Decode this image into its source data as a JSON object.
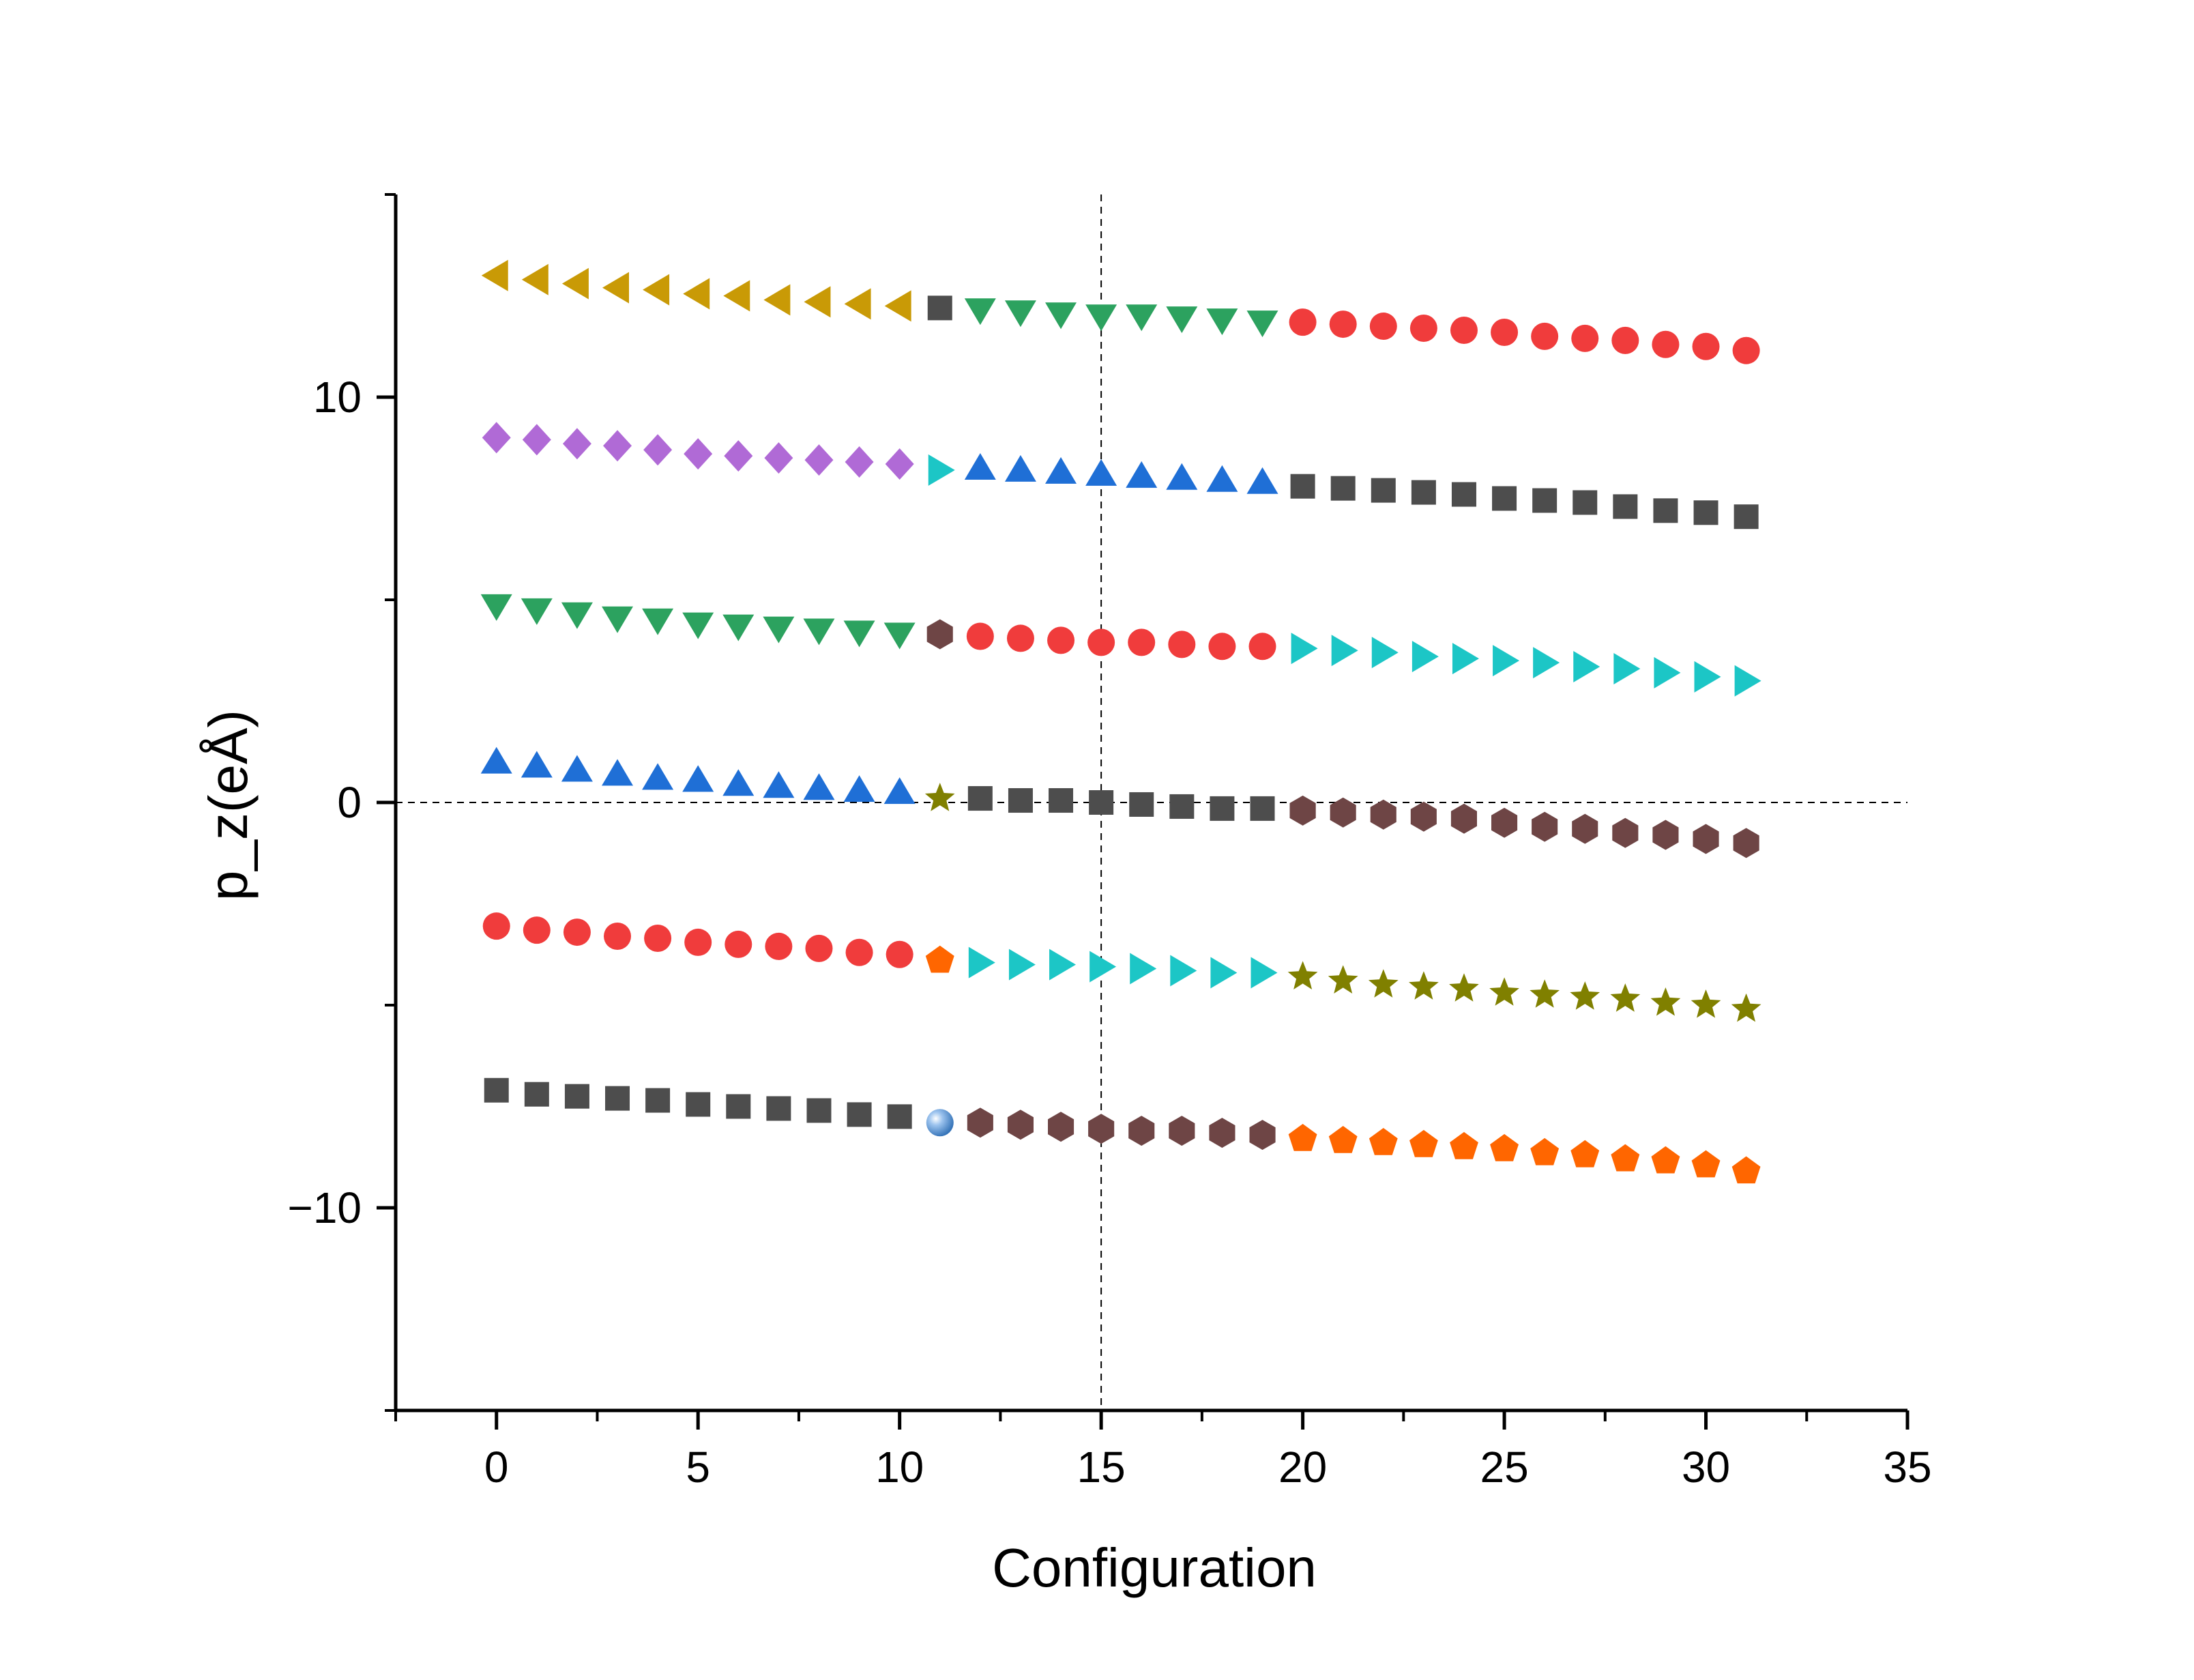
{
  "chart_data": {
    "type": "scatter",
    "title": "",
    "xlabel": "Configuration",
    "ylabel": "p_z(eÅ)",
    "xlim": [
      -2.5,
      35
    ],
    "ylim": [
      -15,
      15
    ],
    "x_ticks": [
      0,
      5,
      10,
      15,
      20,
      25,
      30,
      35
    ],
    "x_tick_labels": [
      "0",
      "5",
      "10",
      "15",
      "20",
      "25",
      "30",
      "35"
    ],
    "y_ticks": [
      -10,
      0,
      10
    ],
    "y_tick_labels": [
      "−10",
      "0",
      "10"
    ],
    "reference_lines": {
      "vertical_x": 15,
      "horizontal_y": 0,
      "style": "dashed"
    },
    "grid": false,
    "legend": "none",
    "series": [
      {
        "marker": "triangle-left",
        "color": "#c99a06",
        "x": [
          0,
          1,
          2,
          3,
          4,
          5,
          6,
          7,
          8,
          9,
          10
        ],
        "y": [
          13.0,
          12.9,
          12.8,
          12.7,
          12.65,
          12.55,
          12.5,
          12.4,
          12.35,
          12.3,
          12.25
        ]
      },
      {
        "marker": "square",
        "color": "#4d4d4d",
        "x": [
          11
        ],
        "y": [
          12.2
        ]
      },
      {
        "marker": "triangle-down",
        "color": "#2ca25f",
        "x": [
          12,
          13,
          14,
          15,
          16,
          17,
          18,
          19
        ],
        "y": [
          12.15,
          12.1,
          12.05,
          12.0,
          12.0,
          11.95,
          11.9,
          11.85
        ]
      },
      {
        "marker": "circle",
        "color": "#f03c3c",
        "x": [
          20,
          21,
          22,
          23,
          24,
          25,
          26,
          27,
          28,
          29,
          30,
          31
        ],
        "y": [
          11.85,
          11.8,
          11.75,
          11.7,
          11.65,
          11.6,
          11.5,
          11.45,
          11.4,
          11.3,
          11.25,
          11.15
        ]
      },
      {
        "marker": "diamond",
        "color": "#b06ad6",
        "x": [
          0,
          1,
          2,
          3,
          4,
          5,
          6,
          7,
          8,
          9,
          10
        ],
        "y": [
          9.0,
          8.95,
          8.85,
          8.8,
          8.7,
          8.6,
          8.55,
          8.5,
          8.45,
          8.4,
          8.35
        ]
      },
      {
        "marker": "triangle-right",
        "color": "#1cc6c6",
        "x": [
          11
        ],
        "y": [
          8.2
        ]
      },
      {
        "marker": "triangle-up",
        "color": "#1f6fd6",
        "x": [
          12,
          13,
          14,
          15,
          16,
          17,
          18,
          19
        ],
        "y": [
          8.25,
          8.2,
          8.15,
          8.1,
          8.05,
          8.0,
          7.95,
          7.9
        ]
      },
      {
        "marker": "square",
        "color": "#4d4d4d",
        "x": [
          20,
          21,
          22,
          23,
          24,
          25,
          26,
          27,
          28,
          29,
          30,
          31
        ],
        "y": [
          7.8,
          7.75,
          7.7,
          7.65,
          7.6,
          7.5,
          7.45,
          7.4,
          7.3,
          7.2,
          7.15,
          7.05
        ]
      },
      {
        "marker": "triangle-down",
        "color": "#2ca25f",
        "x": [
          0,
          1,
          2,
          3,
          4,
          5,
          6,
          7,
          8,
          9,
          10
        ],
        "y": [
          4.85,
          4.75,
          4.65,
          4.55,
          4.5,
          4.4,
          4.35,
          4.3,
          4.25,
          4.2,
          4.15
        ]
      },
      {
        "marker": "hexagon",
        "color": "#6e4545",
        "x": [
          11
        ],
        "y": [
          4.15
        ]
      },
      {
        "marker": "circle",
        "color": "#f03c3c",
        "x": [
          12,
          13,
          14,
          15,
          16,
          17,
          18,
          19
        ],
        "y": [
          4.1,
          4.05,
          4.0,
          3.95,
          3.95,
          3.9,
          3.85,
          3.85
        ]
      },
      {
        "marker": "triangle-right",
        "color": "#1cc6c6",
        "x": [
          20,
          21,
          22,
          23,
          24,
          25,
          26,
          27,
          28,
          29,
          30,
          31
        ],
        "y": [
          3.8,
          3.75,
          3.7,
          3.6,
          3.55,
          3.5,
          3.45,
          3.35,
          3.3,
          3.2,
          3.1,
          3.0
        ]
      },
      {
        "marker": "triangle-up",
        "color": "#1f6fd6",
        "x": [
          0,
          1,
          2,
          3,
          4,
          5,
          6,
          7,
          8,
          9,
          10
        ],
        "y": [
          1.0,
          0.9,
          0.8,
          0.7,
          0.6,
          0.55,
          0.45,
          0.4,
          0.35,
          0.3,
          0.25
        ]
      },
      {
        "marker": "star",
        "color": "#808000",
        "x": [
          11
        ],
        "y": [
          0.1
        ]
      },
      {
        "marker": "square",
        "color": "#4d4d4d",
        "x": [
          12,
          13,
          14,
          15,
          16,
          17,
          18,
          19
        ],
        "y": [
          0.1,
          0.05,
          0.05,
          0.0,
          -0.05,
          -0.1,
          -0.15,
          -0.15
        ]
      },
      {
        "marker": "hexagon",
        "color": "#6e4545",
        "x": [
          20,
          21,
          22,
          23,
          24,
          25,
          26,
          27,
          28,
          29,
          30,
          31
        ],
        "y": [
          -0.2,
          -0.25,
          -0.3,
          -0.35,
          -0.4,
          -0.5,
          -0.6,
          -0.65,
          -0.75,
          -0.8,
          -0.9,
          -1.0
        ]
      },
      {
        "marker": "circle",
        "color": "#f03c3c",
        "x": [
          0,
          1,
          2,
          3,
          4,
          5,
          6,
          7,
          8,
          9,
          10
        ],
        "y": [
          -3.05,
          -3.15,
          -3.2,
          -3.3,
          -3.35,
          -3.45,
          -3.5,
          -3.55,
          -3.6,
          -3.7,
          -3.75
        ]
      },
      {
        "marker": "pentagon",
        "color": "#ff6600",
        "x": [
          11
        ],
        "y": [
          -3.9
        ]
      },
      {
        "marker": "triangle-right",
        "color": "#1cc6c6",
        "x": [
          12,
          13,
          14,
          15,
          16,
          17,
          18,
          19
        ],
        "y": [
          -3.95,
          -4.0,
          -4.0,
          -4.05,
          -4.1,
          -4.15,
          -4.2,
          -4.2
        ]
      },
      {
        "marker": "star",
        "color": "#808000",
        "x": [
          20,
          21,
          22,
          23,
          24,
          25,
          26,
          27,
          28,
          29,
          30,
          31
        ],
        "y": [
          -4.3,
          -4.4,
          -4.5,
          -4.55,
          -4.6,
          -4.7,
          -4.75,
          -4.8,
          -4.85,
          -4.95,
          -5.0,
          -5.1
        ]
      },
      {
        "marker": "square",
        "color": "#4d4d4d",
        "x": [
          0,
          1,
          2,
          3,
          4,
          5,
          6,
          7,
          8,
          9,
          10
        ],
        "y": [
          -7.1,
          -7.2,
          -7.25,
          -7.3,
          -7.35,
          -7.45,
          -7.5,
          -7.55,
          -7.6,
          -7.7,
          -7.75
        ]
      },
      {
        "marker": "sphere",
        "color": "#5b9bd5",
        "x": [
          11
        ],
        "y": [
          -7.9
        ]
      },
      {
        "marker": "hexagon",
        "color": "#6e4545",
        "x": [
          12,
          13,
          14,
          15,
          16,
          17,
          18,
          19
        ],
        "y": [
          -7.9,
          -7.95,
          -8.0,
          -8.05,
          -8.1,
          -8.1,
          -8.15,
          -8.2
        ]
      },
      {
        "marker": "pentagon",
        "color": "#ff6600",
        "x": [
          20,
          21,
          22,
          23,
          24,
          25,
          26,
          27,
          28,
          29,
          30,
          31
        ],
        "y": [
          -8.3,
          -8.35,
          -8.4,
          -8.45,
          -8.5,
          -8.55,
          -8.65,
          -8.7,
          -8.8,
          -8.85,
          -8.95,
          -9.1
        ]
      }
    ]
  }
}
